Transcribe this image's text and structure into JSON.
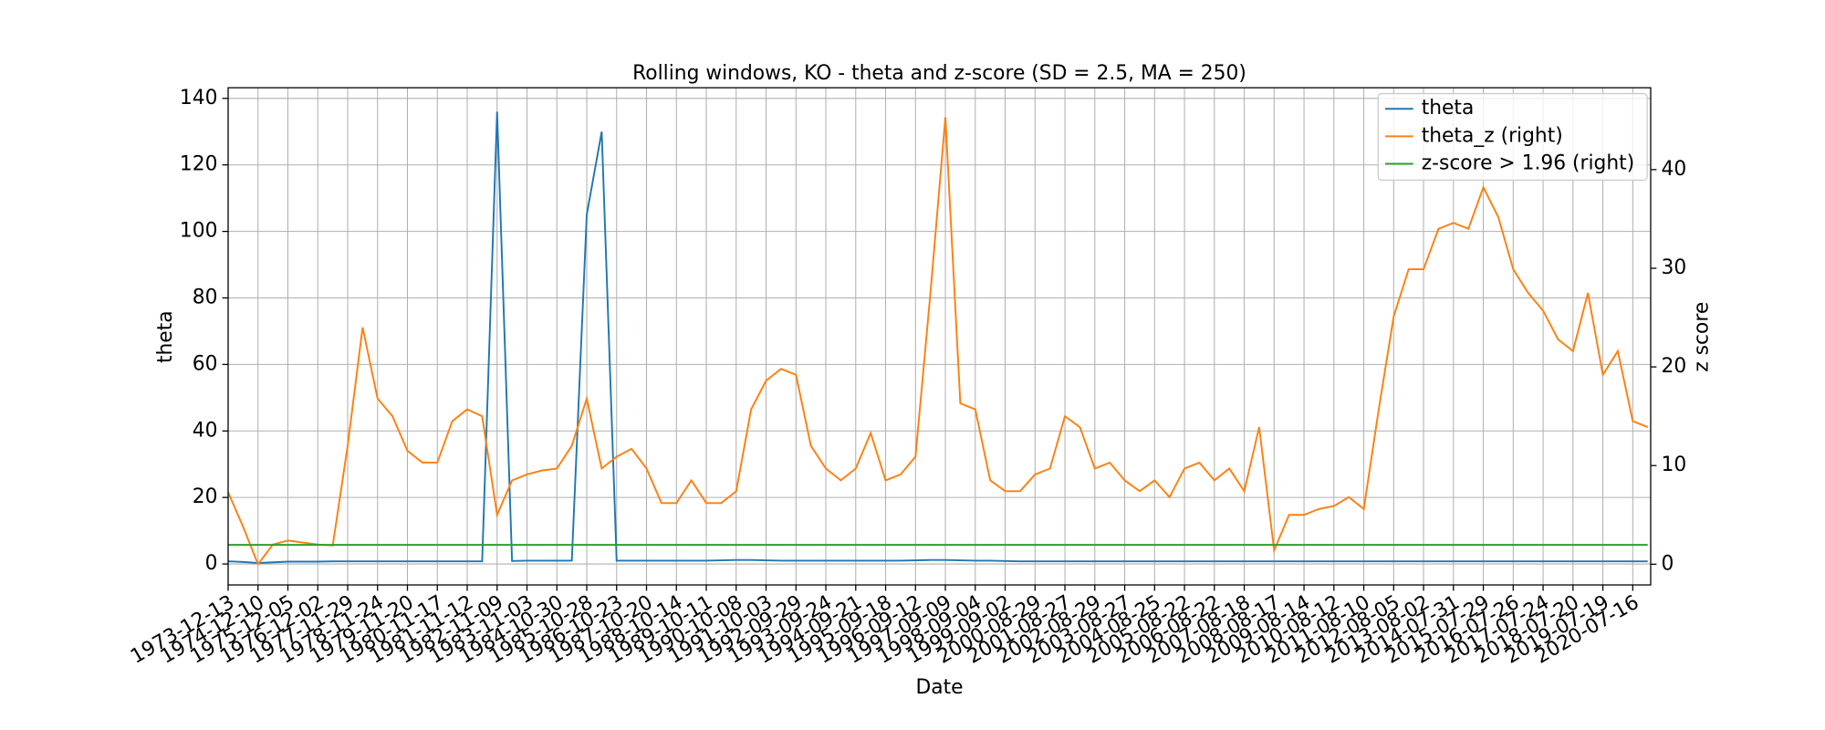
{
  "chart_data": {
    "type": "line",
    "title": "Rolling windows, KO - theta and z-score (SD = 2.5, MA = 250)",
    "x_label": "Date",
    "y_label": "theta",
    "y2_label": "z score",
    "x": [
      0,
      125,
      250,
      375,
      500,
      625,
      750,
      875,
      1000,
      1125,
      1250,
      1375,
      1500,
      1625,
      1750,
      1875,
      2000,
      2125,
      2250,
      2375,
      2500,
      2625,
      2750,
      2875,
      3000,
      3125,
      3250,
      3375,
      3500,
      3625,
      3750,
      3875,
      4000,
      4125,
      4250,
      4375,
      4500,
      4625,
      4750,
      4875,
      5000,
      5125,
      5250,
      5375,
      5500,
      5625,
      5750,
      5875,
      6000,
      6125,
      6250,
      6375,
      6500,
      6625,
      6750,
      6875,
      7000,
      7125,
      7250,
      7375,
      7500,
      7625,
      7750,
      7875,
      8000,
      8125,
      8250,
      8375,
      8500,
      8625,
      8750,
      8875,
      9000,
      9125,
      9250,
      9375,
      9500,
      9625,
      9750,
      9875,
      10000,
      10125,
      10250,
      10375,
      10500,
      10625,
      10750,
      10875,
      11000,
      11125,
      11250,
      11375,
      11500,
      11625,
      11750,
      11875
    ],
    "series": [
      {
        "name": "theta",
        "color": "#1f77b4",
        "axis": "y",
        "values": [
          0.8,
          0.6,
          0.3,
          0.5,
          0.7,
          0.7,
          0.7,
          0.8,
          0.8,
          0.8,
          0.8,
          0.8,
          0.8,
          0.8,
          0.8,
          0.8,
          0.8,
          0.8,
          136,
          0.9,
          1,
          1,
          1,
          1,
          105,
          130,
          1,
          1,
          1,
          1,
          1,
          1,
          1,
          1.1,
          1.2,
          1.2,
          1.1,
          1,
          1,
          1,
          1,
          1,
          1,
          1,
          1,
          1,
          1.1,
          1.2,
          1.2,
          1.1,
          1,
          1,
          0.9,
          0.8,
          0.8,
          0.8,
          0.8,
          0.8,
          0.8,
          0.8,
          0.8,
          0.8,
          0.8,
          0.8,
          0.8,
          0.8,
          0.8,
          0.8,
          0.8,
          0.8,
          0.8,
          0.8,
          0.8,
          0.8,
          0.8,
          0.8,
          0.8,
          0.8,
          0.8,
          0.8,
          0.8,
          0.8,
          0.8,
          0.8,
          0.8,
          0.8,
          0.8,
          0.8,
          0.8,
          0.8,
          0.8,
          0.8,
          0.8,
          0.8,
          0.8,
          0.8
        ]
      },
      {
        "name": "theta_z (right)",
        "color": "#ff7f0e",
        "axis": "y2",
        "values": [
          7.3,
          3.8,
          0,
          2,
          2.4,
          2.2,
          2,
          1.9,
          12,
          24,
          16.8,
          15,
          11.5,
          10.3,
          10.3,
          14.5,
          15.7,
          15,
          5,
          8.5,
          9.1,
          9.5,
          9.7,
          12,
          16.8,
          9.7,
          10.9,
          11.7,
          9.7,
          6.2,
          6.2,
          8.5,
          6.2,
          6.2,
          7.4,
          15.7,
          18.6,
          19.8,
          19.2,
          12,
          9.7,
          8.5,
          9.7,
          13.3,
          8.5,
          9.1,
          10.9,
          27.5,
          45.3,
          16.3,
          15.7,
          8.5,
          7.4,
          7.4,
          9.1,
          9.7,
          15,
          13.9,
          9.7,
          10.3,
          8.5,
          7.4,
          8.5,
          6.8,
          9.7,
          10.3,
          8.5,
          9.7,
          7.4,
          13.9,
          1.4,
          5,
          5,
          5.6,
          5.9,
          6.8,
          5.6,
          15.7,
          25.1,
          29.9,
          29.9,
          34,
          34.6,
          34,
          38.2,
          35.2,
          29.9,
          27.5,
          25.7,
          22.8,
          21.6,
          27.5,
          19.2,
          21.6,
          14.5,
          13.9
        ]
      },
      {
        "name": "z-score > 1.96 (right)",
        "color": "#2ca02c",
        "axis": "y2",
        "values": [
          1.96,
          1.96,
          1.96,
          1.96,
          1.96,
          1.96,
          1.96,
          1.96,
          1.96,
          1.96,
          1.96,
          1.96,
          1.96,
          1.96,
          1.96,
          1.96,
          1.96,
          1.96,
          1.96,
          1.96,
          1.96,
          1.96,
          1.96,
          1.96,
          1.96,
          1.96,
          1.96,
          1.96,
          1.96,
          1.96,
          1.96,
          1.96,
          1.96,
          1.96,
          1.96,
          1.96,
          1.96,
          1.96,
          1.96,
          1.96,
          1.96,
          1.96,
          1.96,
          1.96,
          1.96,
          1.96,
          1.96,
          1.96,
          1.96,
          1.96,
          1.96,
          1.96,
          1.96,
          1.96,
          1.96,
          1.96,
          1.96,
          1.96,
          1.96,
          1.96,
          1.96,
          1.96,
          1.96,
          1.96,
          1.96,
          1.96,
          1.96,
          1.96,
          1.96,
          1.96,
          1.96,
          1.96,
          1.96,
          1.96,
          1.96,
          1.96,
          1.96,
          1.96,
          1.96,
          1.96,
          1.96,
          1.96,
          1.96,
          1.96,
          1.96,
          1.96,
          1.96,
          1.96,
          1.96,
          1.96,
          1.96,
          1.96,
          1.96,
          1.96,
          1.96,
          1.96
        ]
      }
    ],
    "xlim": [
      0,
      11900
    ],
    "xticks": [
      {
        "value": 0,
        "label": "1973-12-13"
      },
      {
        "value": 250,
        "label": "1974-12-10"
      },
      {
        "value": 500,
        "label": "1975-12-05"
      },
      {
        "value": 750,
        "label": "1976-12-02"
      },
      {
        "value": 1000,
        "label": "1977-11-29"
      },
      {
        "value": 1250,
        "label": "1978-11-24"
      },
      {
        "value": 1500,
        "label": "1979-11-20"
      },
      {
        "value": 1750,
        "label": "1980-11-17"
      },
      {
        "value": 2000,
        "label": "1981-11-12"
      },
      {
        "value": 2250,
        "label": "1982-11-09"
      },
      {
        "value": 2500,
        "label": "1983-11-03"
      },
      {
        "value": 2750,
        "label": "1984-10-30"
      },
      {
        "value": 3000,
        "label": "1985-10-28"
      },
      {
        "value": 3250,
        "label": "1986-10-23"
      },
      {
        "value": 3500,
        "label": "1987-10-20"
      },
      {
        "value": 3750,
        "label": "1988-10-14"
      },
      {
        "value": 4000,
        "label": "1989-10-11"
      },
      {
        "value": 4250,
        "label": "1990-10-08"
      },
      {
        "value": 4500,
        "label": "1991-10-03"
      },
      {
        "value": 4750,
        "label": "1992-09-29"
      },
      {
        "value": 5000,
        "label": "1993-09-24"
      },
      {
        "value": 5250,
        "label": "1994-09-21"
      },
      {
        "value": 5500,
        "label": "1995-09-18"
      },
      {
        "value": 5750,
        "label": "1996-09-12"
      },
      {
        "value": 6000,
        "label": "1997-09-09"
      },
      {
        "value": 6250,
        "label": "1998-09-04"
      },
      {
        "value": 6500,
        "label": "1999-09-02"
      },
      {
        "value": 6750,
        "label": "2000-08-29"
      },
      {
        "value": 7000,
        "label": "2001-08-27"
      },
      {
        "value": 7250,
        "label": "2002-08-29"
      },
      {
        "value": 7500,
        "label": "2003-08-27"
      },
      {
        "value": 7750,
        "label": "2004-08-25"
      },
      {
        "value": 8000,
        "label": "2005-08-22"
      },
      {
        "value": 8250,
        "label": "2006-08-22"
      },
      {
        "value": 8500,
        "label": "2007-08-18"
      },
      {
        "value": 8750,
        "label": "2008-08-17"
      },
      {
        "value": 9000,
        "label": "2009-08-14"
      },
      {
        "value": 9250,
        "label": "2010-08-12"
      },
      {
        "value": 9500,
        "label": "2011-08-10"
      },
      {
        "value": 9750,
        "label": "2012-08-05"
      },
      {
        "value": 10000,
        "label": "2013-08-02"
      },
      {
        "value": 10250,
        "label": "2014-07-31"
      },
      {
        "value": 10500,
        "label": "2015-07-29"
      },
      {
        "value": 10750,
        "label": "2016-07-26"
      },
      {
        "value": 11000,
        "label": "2017-07-24"
      },
      {
        "value": 11250,
        "label": "2018-07-20"
      },
      {
        "value": 11500,
        "label": "2019-07-19"
      },
      {
        "value": 11750,
        "label": "2020-07-16"
      }
    ],
    "ylim": [
      -6.3,
      143.2
    ],
    "yticks": [
      0,
      20,
      40,
      60,
      80,
      100,
      120,
      140
    ],
    "y2lim": [
      -2.1,
      48.3
    ],
    "y2ticks": [
      0,
      10,
      20,
      30,
      40
    ],
    "grid": true,
    "legend": "upper right"
  }
}
